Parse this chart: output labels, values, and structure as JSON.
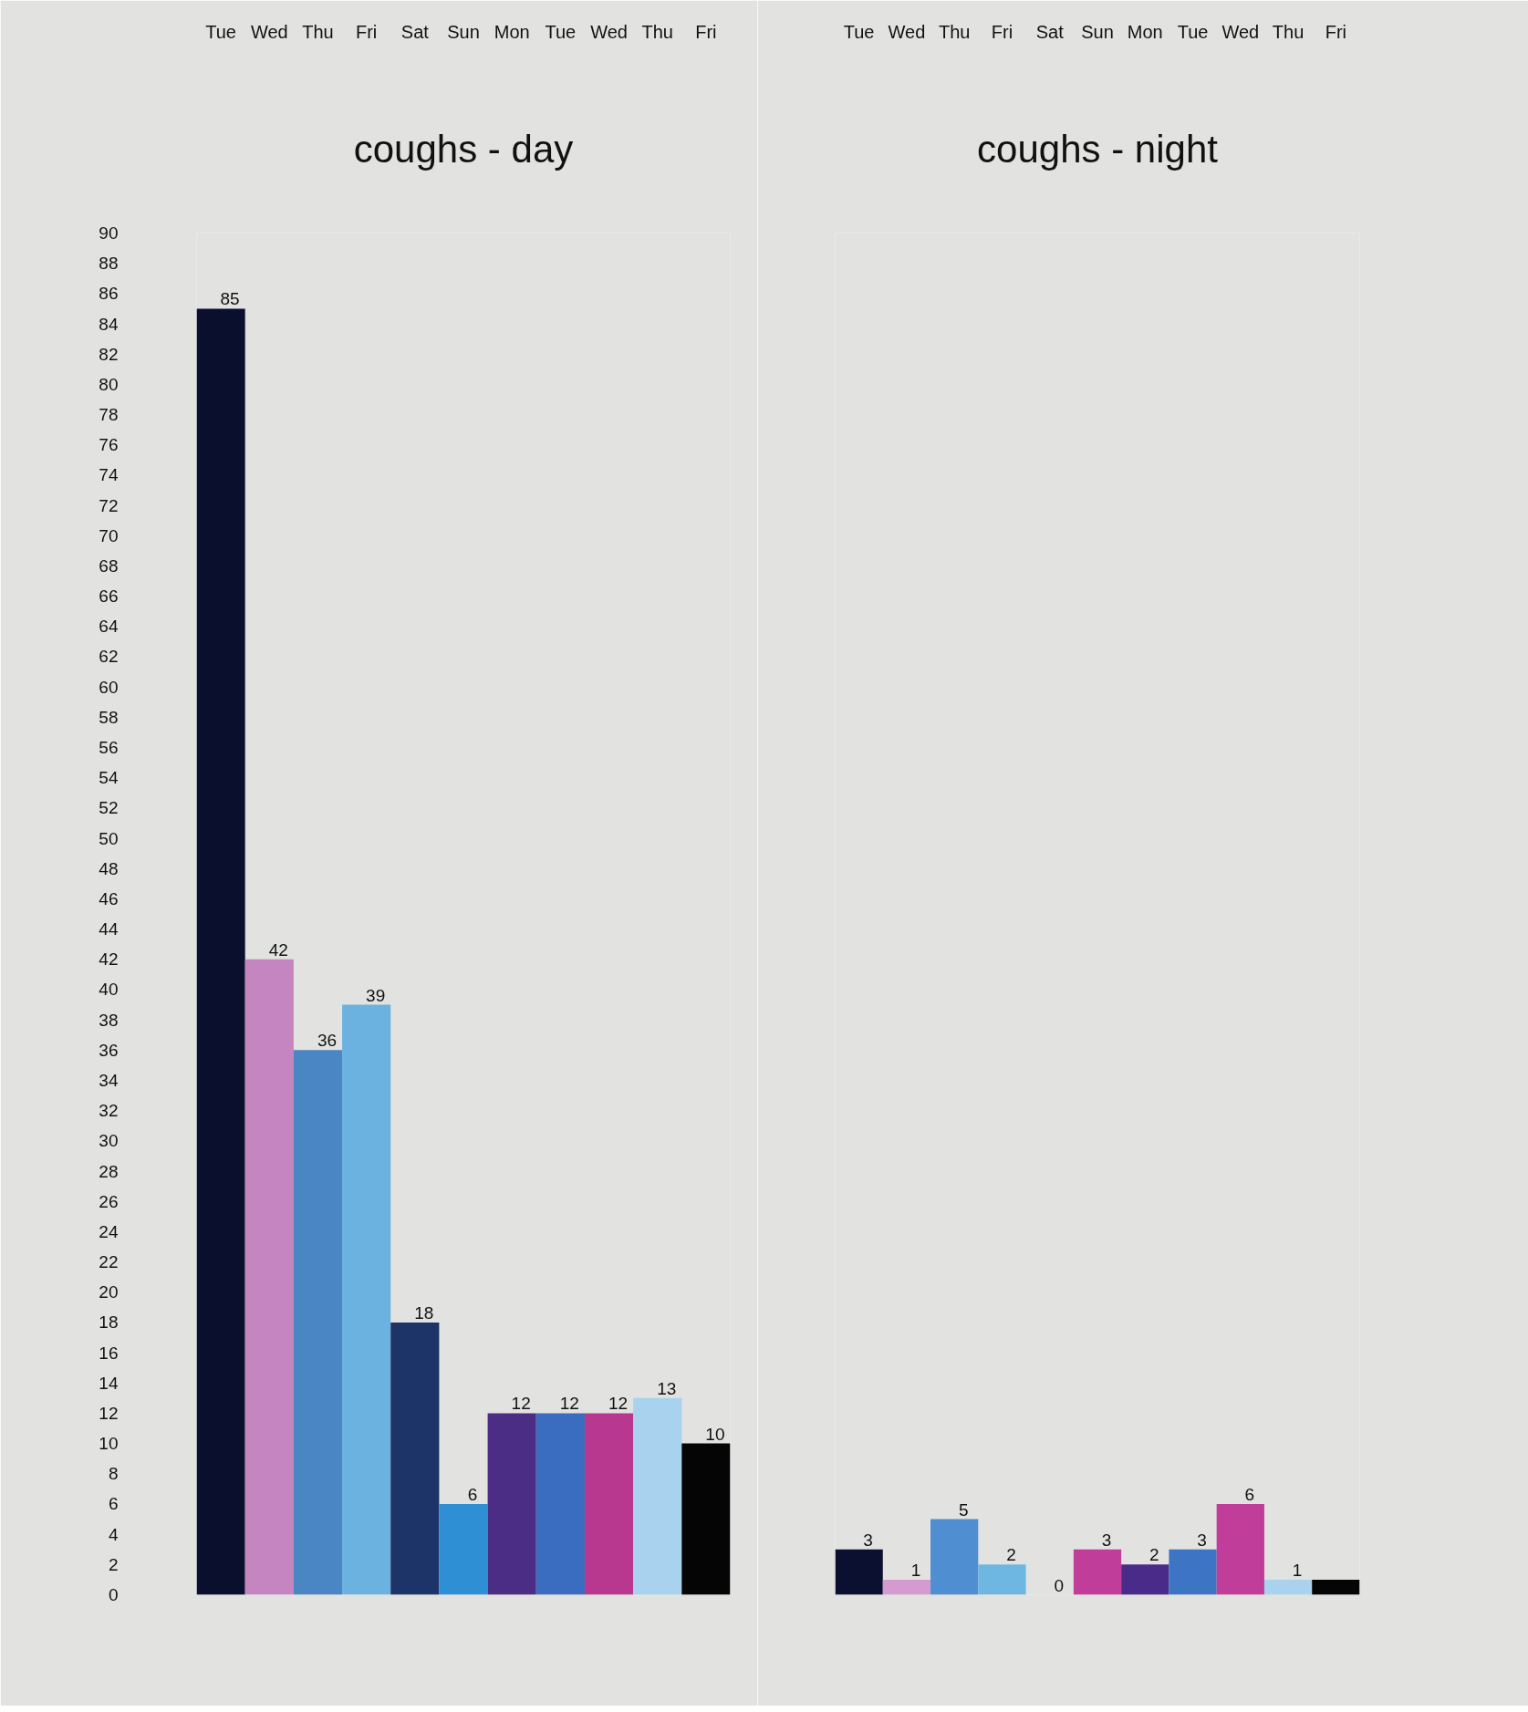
{
  "chart_data": [
    {
      "type": "bar",
      "title": "coughs - day",
      "categories": [
        "Tue",
        "Wed",
        "Thu",
        "Fri",
        "Sat",
        "Sun",
        "Mon",
        "Tue",
        "Wed",
        "Thu",
        "Fri"
      ],
      "values": [
        85,
        42,
        36,
        39,
        18,
        6,
        12,
        12,
        12,
        13,
        10
      ],
      "colors": [
        "#0b0f2e",
        "#c585c0",
        "#4a86c4",
        "#6cb2e0",
        "#1d3468",
        "#2e8fd4",
        "#4c2d86",
        "#3a6cbf",
        "#b8388f",
        "#a8d2ee",
        "#050505"
      ],
      "ylim": [
        0,
        90
      ],
      "yticks": [
        0,
        2,
        4,
        6,
        8,
        10,
        12,
        14,
        16,
        18,
        20,
        22,
        24,
        26,
        28,
        30,
        32,
        34,
        36,
        38,
        40,
        42,
        44,
        46,
        48,
        50,
        52,
        54,
        56,
        58,
        60,
        62,
        64,
        66,
        68,
        70,
        72,
        74,
        76,
        78,
        80,
        82,
        84,
        86,
        88,
        90
      ],
      "data_labels": true
    },
    {
      "type": "bar",
      "title": "coughs - night",
      "categories": [
        "Tue",
        "Wed",
        "Thu",
        "Fri",
        "Sat",
        "Sun",
        "Mon",
        "Tue",
        "Wed",
        "Thu",
        "Fri"
      ],
      "values": [
        3,
        1,
        5,
        2,
        0,
        3,
        2,
        3,
        6,
        1,
        1
      ],
      "colors": [
        "#0c1030",
        "#d39bd0",
        "#4f8ed0",
        "#6db7e2",
        null,
        "#c03d9a",
        "#4a2b8a",
        "#3d74c4",
        "#c03d9a",
        "#a8d2ee",
        "#050505"
      ],
      "ylim": [
        0,
        90
      ],
      "tick_labels": "x",
      "value_labels": [
        "3",
        "1",
        "5",
        "2",
        "0",
        "3",
        "2",
        "3",
        "6",
        "1",
        null
      ]
    }
  ]
}
